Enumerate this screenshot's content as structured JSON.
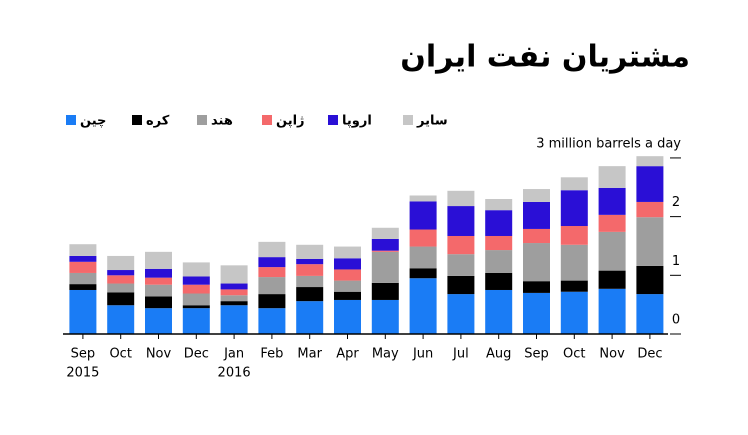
{
  "chart_data": {
    "type": "stacked_bar",
    "title": "مشتریان نفت ایران",
    "categories": [
      "Sep",
      "Oct",
      "Nov",
      "Dec",
      "Jan",
      "Feb",
      "Mar",
      "Apr",
      "May",
      "Jun",
      "Jul",
      "Aug",
      "Sep",
      "Oct",
      "Nov",
      "Dec"
    ],
    "x_sublabels": [
      "2015",
      null,
      null,
      null,
      "2016",
      null,
      null,
      null,
      null,
      null,
      null,
      null,
      null,
      null,
      null,
      null
    ],
    "series": [
      {
        "name": "چین",
        "color": "#1a7cf5",
        "values": [
          0.75,
          0.49,
          0.44,
          0.44,
          0.49,
          0.44,
          0.56,
          0.58,
          0.58,
          0.95,
          0.68,
          0.75,
          0.7,
          0.72,
          0.77,
          0.68
        ]
      },
      {
        "name": "کره",
        "color": "#000000",
        "values": [
          0.1,
          0.22,
          0.2,
          0.05,
          0.07,
          0.24,
          0.24,
          0.14,
          0.29,
          0.17,
          0.31,
          0.29,
          0.2,
          0.19,
          0.31,
          0.48
        ]
      },
      {
        "name": "هند",
        "color": "#9e9e9e",
        "values": [
          0.19,
          0.15,
          0.2,
          0.2,
          0.1,
          0.29,
          0.19,
          0.19,
          0.53,
          0.37,
          0.37,
          0.39,
          0.65,
          0.61,
          0.66,
          0.83
        ]
      },
      {
        "name": "ژاپن",
        "color": "#f4696b",
        "values": [
          0.19,
          0.14,
          0.12,
          0.15,
          0.1,
          0.17,
          0.2,
          0.19,
          0.02,
          0.29,
          0.31,
          0.24,
          0.24,
          0.32,
          0.29,
          0.26
        ]
      },
      {
        "name": "اروپا",
        "color": "#2a0fd6",
        "values": [
          0.1,
          0.09,
          0.15,
          0.14,
          0.1,
          0.17,
          0.09,
          0.19,
          0.2,
          0.48,
          0.51,
          0.44,
          0.46,
          0.61,
          0.46,
          0.61
        ]
      },
      {
        "name": "سایر",
        "color": "#c6c6c6",
        "values": [
          0.2,
          0.24,
          0.29,
          0.24,
          0.31,
          0.26,
          0.24,
          0.2,
          0.19,
          0.1,
          0.26,
          0.19,
          0.22,
          0.22,
          0.37,
          0.17
        ]
      }
    ],
    "ylim": [
      0,
      3.05
    ],
    "yticks": [
      0,
      1,
      2,
      {
        "value": 3,
        "label": "3 million barrels a day"
      }
    ]
  }
}
